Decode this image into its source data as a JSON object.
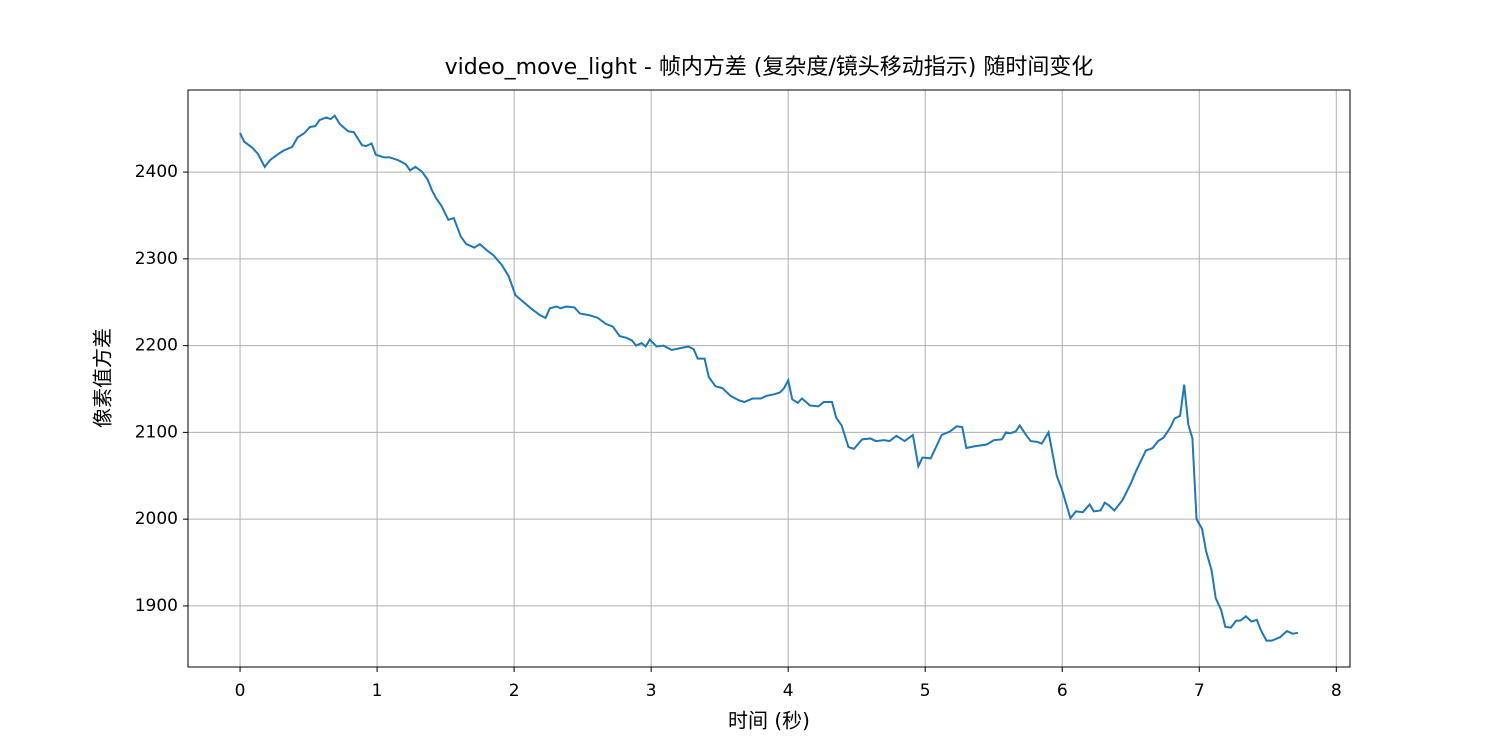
{
  "chart_data": {
    "type": "line",
    "title": "video_move_light - 帧内方差 (复杂度/镜头移动指示) 随时间变化",
    "x_label": "时间 (秒)",
    "y_label": "像素值方差",
    "x": [
      0,
      0.03,
      0.09,
      0.13,
      0.18,
      0.22,
      0.29,
      0.32,
      0.38,
      0.42,
      0.47,
      0.51,
      0.55,
      0.58,
      0.63,
      0.66,
      0.69,
      0.73,
      0.79,
      0.83,
      0.89,
      0.92,
      0.96,
      0.99,
      1.05,
      1.09,
      1.15,
      1.21,
      1.24,
      1.28,
      1.33,
      1.37,
      1.4,
      1.43,
      1.47,
      1.52,
      1.56,
      1.61,
      1.65,
      1.71,
      1.75,
      1.8,
      1.85,
      1.91,
      1.96,
      2.01,
      2.07,
      2.13,
      2.19,
      2.23,
      2.26,
      2.31,
      2.34,
      2.38,
      2.44,
      2.48,
      2.55,
      2.61,
      2.67,
      2.72,
      2.77,
      2.82,
      2.86,
      2.89,
      2.93,
      2.96,
      2.99,
      3.04,
      3.09,
      3.15,
      3.21,
      3.27,
      3.31,
      3.34,
      3.39,
      3.42,
      3.47,
      3.52,
      3.58,
      3.64,
      3.68,
      3.71,
      3.74,
      3.8,
      3.84,
      3.9,
      3.94,
      3.97,
      4,
      4.03,
      4.07,
      4.1,
      4.16,
      4.22,
      4.26,
      4.32,
      4.35,
      4.39,
      4.44,
      4.48,
      4.54,
      4.6,
      4.64,
      4.7,
      4.74,
      4.79,
      4.85,
      4.91,
      4.95,
      4.98,
      5.04,
      5.12,
      5.18,
      5.23,
      5.27,
      5.3,
      5.36,
      5.45,
      5.5,
      5.56,
      5.59,
      5.62,
      5.66,
      5.69,
      5.74,
      5.77,
      5.82,
      5.85,
      5.9,
      5.96,
      6,
      6.06,
      6.1,
      6.15,
      6.2,
      6.23,
      6.28,
      6.31,
      6.34,
      6.38,
      6.44,
      6.5,
      6.54,
      6.58,
      6.61,
      6.66,
      6.7,
      6.74,
      6.79,
      6.82,
      6.86,
      6.89,
      6.92,
      6.95,
      6.98,
      7.02,
      7.05,
      7.09,
      7.12,
      7.16,
      7.19,
      7.23,
      7.27,
      7.3,
      7.34,
      7.38,
      7.42,
      7.45,
      7.49,
      7.53,
      7.59,
      7.64,
      7.68,
      7.72
    ],
    "series": [
      {
        "color": "#1f77b4",
        "values": [
          2445,
          2435,
          2428,
          2421,
          2406,
          2414,
          2422,
          2425,
          2429,
          2440,
          2445,
          2452,
          2453,
          2460,
          2463,
          2461,
          2465,
          2455,
          2447,
          2446,
          2431,
          2430,
          2433,
          2420,
          2417,
          2417,
          2414,
          2409,
          2402,
          2406,
          2400,
          2391,
          2379,
          2370,
          2361,
          2345,
          2347,
          2326,
          2317,
          2313,
          2317,
          2310,
          2304,
          2293,
          2280,
          2258,
          2250,
          2242,
          2235,
          2232,
          2243,
          2245,
          2243,
          2245,
          2244,
          2237,
          2235,
          2232,
          2225,
          2222,
          2211,
          2209,
          2206,
          2200,
          2203,
          2199,
          2207,
          2199,
          2200,
          2195,
          2197,
          2199,
          2196,
          2185,
          2185,
          2164,
          2153,
          2151,
          2142,
          2137,
          2135,
          2137,
          2139,
          2139,
          2142,
          2144,
          2146,
          2151,
          2160,
          2138,
          2134,
          2139,
          2131,
          2130,
          2135,
          2135,
          2117,
          2108,
          2083,
          2081,
          2092,
          2093,
          2090,
          2091,
          2090,
          2096,
          2090,
          2097,
          2061,
          2071,
          2070,
          2097,
          2101,
          2107,
          2106,
          2082,
          2084,
          2086,
          2091,
          2092,
          2100,
          2099,
          2101,
          2108,
          2096,
          2090,
          2089,
          2087,
          2100,
          2050,
          2033,
          2001,
          2009,
          2008,
          2017,
          2009,
          2010,
          2019,
          2016,
          2010,
          2022,
          2041,
          2056,
          2069,
          2079,
          2082,
          2090,
          2094,
          2106,
          2116,
          2119,
          2155,
          2109,
          2093,
          2000,
          1989,
          1963,
          1941,
          1909,
          1895,
          1876,
          1875,
          1883,
          1883,
          1888,
          1882,
          1884,
          1872,
          1860,
          1860,
          1864,
          1871,
          1868,
          1869
        ]
      }
    ],
    "xlim": [
      -0.38,
      8.1
    ],
    "ylim": [
      1829.6,
      2494.6
    ],
    "xticks": [
      0,
      1,
      2,
      3,
      4,
      5,
      6,
      7,
      8
    ],
    "yticks": [
      1900,
      2000,
      2100,
      2200,
      2300,
      2400
    ],
    "grid": true
  }
}
